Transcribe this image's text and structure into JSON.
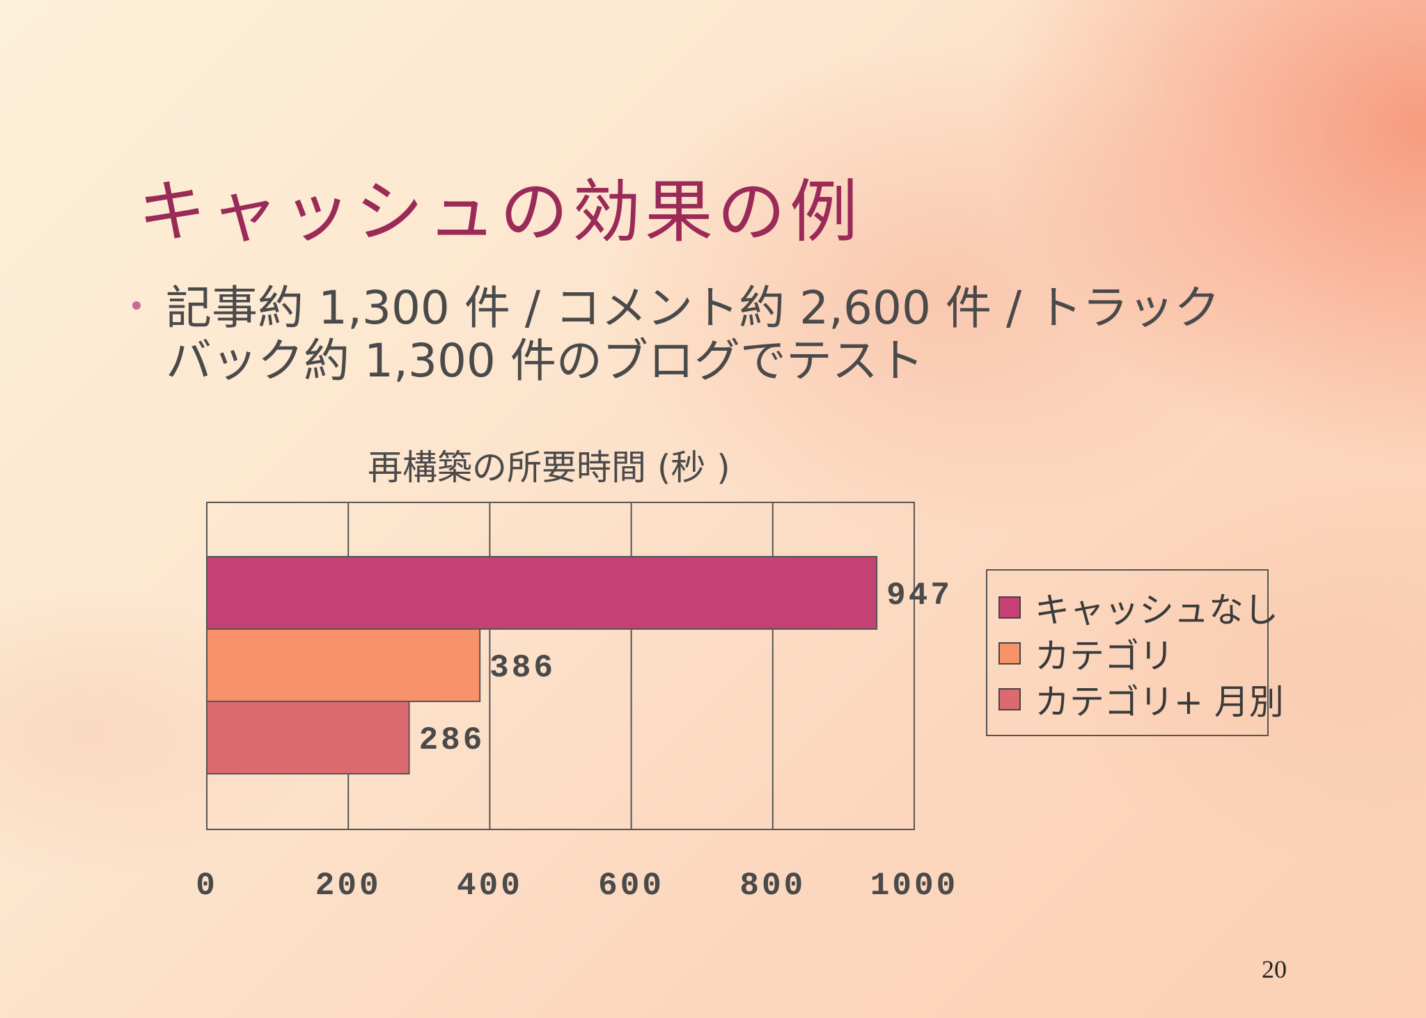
{
  "slide": {
    "title": "キャッシュの効果の例",
    "bullet": "記事約 1,300 件 / コメント約 2,600 件 / トラックバック約 1,300 件のブログでテスト",
    "page_number": "20"
  },
  "colors": {
    "title": "#9a2a58",
    "text": "#4a4a4a",
    "bullet": "#c86a9a"
  },
  "chart_data": {
    "type": "bar",
    "orientation": "horizontal",
    "title": "再構築の所要時間 (秒 )",
    "xlabel": "",
    "ylabel": "",
    "xlim": [
      0,
      1000
    ],
    "ticks": [
      0,
      200,
      400,
      600,
      800,
      1000
    ],
    "grid": true,
    "legend_position": "right",
    "series": [
      {
        "name": "キャッシュなし",
        "value": 947,
        "label": "947",
        "color": "#c44174"
      },
      {
        "name": "カテゴリ",
        "value": 386,
        "label": "386",
        "color": "#f7926a"
      },
      {
        "name": "カテゴリ+ 月別",
        "value": 286,
        "label": "286",
        "color": "#dc6a6e"
      }
    ]
  }
}
